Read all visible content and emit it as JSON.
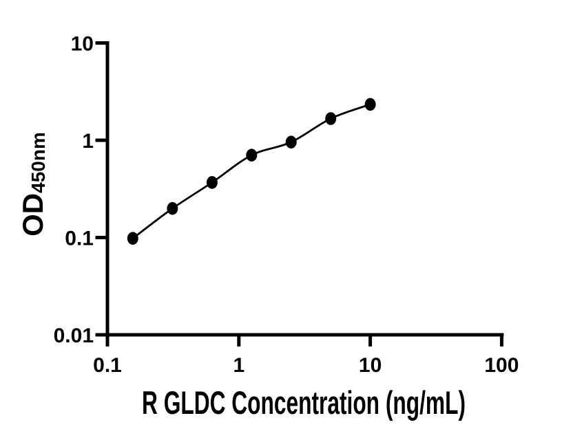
{
  "figure": {
    "background": "#ffffff",
    "ink": "#000000"
  },
  "chart_data": {
    "type": "scatter",
    "curve": "smooth-fit-line",
    "marker": "filled-ellipse",
    "title": "",
    "xlabel": "R GLDC Concentration (ng/mL)",
    "ylabel_main": "OD",
    "ylabel_sub": "450nm",
    "x_scale": "log",
    "y_scale": "log",
    "xlim": [
      0.1,
      100
    ],
    "ylim": [
      0.01,
      10
    ],
    "x_ticks": [
      0.1,
      1,
      10,
      100
    ],
    "x_tick_labels": [
      "0.1",
      "1",
      "10",
      "100"
    ],
    "y_ticks": [
      0.01,
      0.1,
      1,
      10
    ],
    "y_tick_labels": [
      "0.01",
      "0.1",
      "1",
      "10"
    ],
    "grid": false,
    "legend": "none",
    "points": [
      {
        "x": 0.156,
        "y": 0.098
      },
      {
        "x": 0.3125,
        "y": 0.199
      },
      {
        "x": 0.625,
        "y": 0.368
      },
      {
        "x": 1.25,
        "y": 0.703
      },
      {
        "x": 2.5,
        "y": 0.957
      },
      {
        "x": 5,
        "y": 1.67
      },
      {
        "x": 10,
        "y": 2.34
      }
    ]
  }
}
